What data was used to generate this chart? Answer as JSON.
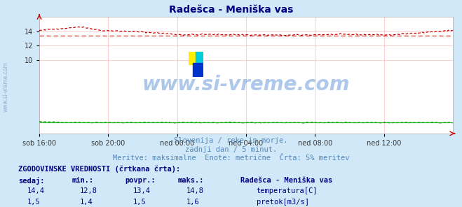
{
  "title": "Radešca - Meniška vas",
  "title_color": "#000080",
  "bg_color": "#d0e8f8",
  "plot_bg_color": "#ffffff",
  "grid_color": "#ffbbbb",
  "xlabel_ticks": [
    "sob 16:00",
    "sob 20:00",
    "ned 00:00",
    "ned 04:00",
    "ned 08:00",
    "ned 12:00"
  ],
  "ylim": [
    0,
    16
  ],
  "yticks": [
    10,
    12,
    14
  ],
  "temp_color": "#cc0000",
  "flow_color": "#00aa00",
  "watermark_text": "www.si-vreme.com",
  "watermark_color": "#3377cc",
  "watermark_alpha": 0.4,
  "subtitle1": "Slovenija / reke in morje.",
  "subtitle2": "zadnji dan / 5 minut.",
  "subtitle3": "Meritve: maksimalne  Enote: metrične  Črta: 5% meritev",
  "subtitle_color": "#5588bb",
  "table_header": "ZGODOVINSKE VREDNOSTI (črtkana črta):",
  "col_headers": [
    "sedaj:",
    "min.:",
    "povpr.:",
    "maks.:"
  ],
  "row1_vals": [
    "14,4",
    "12,8",
    "13,4",
    "14,8"
  ],
  "row2_vals": [
    "1,5",
    "1,4",
    "1,5",
    "1,6"
  ],
  "legend_title": "Radešca - Meniška vas",
  "legend_row1": "temperatura[C]",
  "legend_row2": "pretok[m3/s]",
  "temp_avg": 13.4,
  "flow_avg": 1.5
}
